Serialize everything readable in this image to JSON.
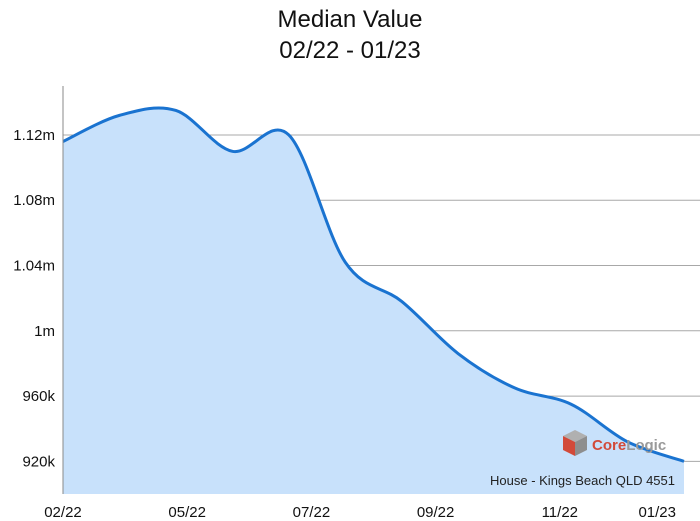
{
  "chart_data": {
    "type": "area",
    "title": "Median Value",
    "subtitle": "02/22 - 01/23",
    "xlabel": "",
    "ylabel": "",
    "ylim": [
      900000,
      1150000
    ],
    "grid": true,
    "x_tick_labels": [
      "02/22",
      "05/22",
      "07/22",
      "09/22",
      "11/22",
      "01/23"
    ],
    "y_ticks": [
      {
        "value": 920000,
        "label": "920k"
      },
      {
        "value": 960000,
        "label": "960k"
      },
      {
        "value": 1000000,
        "label": "1m"
      },
      {
        "value": 1040000,
        "label": "1.04m"
      },
      {
        "value": 1080000,
        "label": "1.08m"
      },
      {
        "value": 1120000,
        "label": "1.12m"
      }
    ],
    "series": [
      {
        "values": [
          {
            "x": "02/22",
            "y": 1116000
          },
          {
            "x": "03/22",
            "y": 1132000
          },
          {
            "x": "04/22",
            "y": 1135000
          },
          {
            "x": "05/22",
            "y": 1110000
          },
          {
            "x": "06/22",
            "y": 1120000
          },
          {
            "x": "07/22",
            "y": 1042000
          },
          {
            "x": "08/22",
            "y": 1018000
          },
          {
            "x": "09/22",
            "y": 986000
          },
          {
            "x": "10/22",
            "y": 965000
          },
          {
            "x": "11/22",
            "y": 955000
          },
          {
            "x": "12/22",
            "y": 932000
          },
          {
            "x": "01/23",
            "y": 920000
          }
        ]
      }
    ],
    "colors": {
      "line": "#1a73d0",
      "fill": "#c8e1fb",
      "grid": "#a8a8a8",
      "axis": "#8a8a8a"
    },
    "footnote": "House - Kings Beach QLD 4551",
    "logo": {
      "text": "CoreLogic",
      "icon": "corelogic-cube-icon"
    }
  }
}
